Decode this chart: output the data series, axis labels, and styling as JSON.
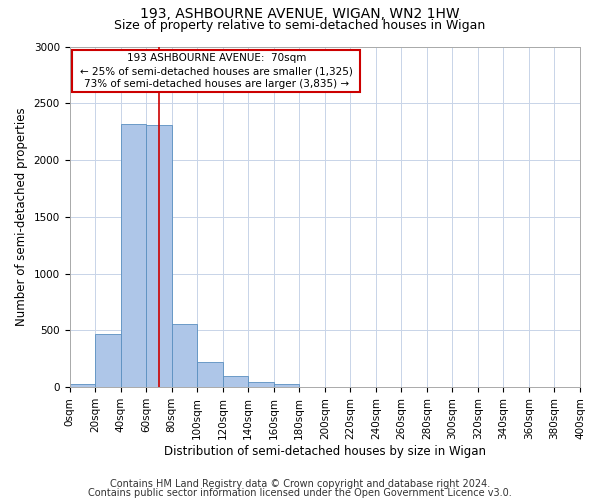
{
  "title1": "193, ASHBOURNE AVENUE, WIGAN, WN2 1HW",
  "title2": "Size of property relative to semi-detached houses in Wigan",
  "xlabel": "Distribution of semi-detached houses by size in Wigan",
  "ylabel": "Number of semi-detached properties",
  "footnote1": "Contains HM Land Registry data © Crown copyright and database right 2024.",
  "footnote2": "Contains public sector information licensed under the Open Government Licence v3.0.",
  "bin_edges": [
    0,
    20,
    40,
    60,
    80,
    100,
    120,
    140,
    160,
    180,
    200,
    220,
    240,
    260,
    280,
    300,
    320,
    340,
    360,
    380,
    400
  ],
  "bin_labels": [
    "0sqm",
    "20sqm",
    "40sqm",
    "60sqm",
    "80sqm",
    "100sqm",
    "120sqm",
    "140sqm",
    "160sqm",
    "180sqm",
    "200sqm",
    "220sqm",
    "240sqm",
    "260sqm",
    "280sqm",
    "300sqm",
    "320sqm",
    "340sqm",
    "360sqm",
    "380sqm",
    "400sqm"
  ],
  "bar_heights": [
    30,
    470,
    2320,
    2310,
    560,
    220,
    100,
    50,
    30,
    0,
    0,
    0,
    0,
    0,
    0,
    0,
    0,
    0,
    0,
    0
  ],
  "bar_color": "#aec6e8",
  "bar_edge_color": "#5a8fc0",
  "property_size": 70,
  "property_label": "193 ASHBOURNE AVENUE:  70sqm",
  "pct_smaller": 25,
  "n_smaller": 1325,
  "pct_larger": 73,
  "n_larger": 3835,
  "red_line_color": "#cc0000",
  "annotation_box_color": "#cc0000",
  "ylim": [
    0,
    3000
  ],
  "yticks": [
    0,
    500,
    1000,
    1500,
    2000,
    2500,
    3000
  ],
  "background_color": "#ffffff",
  "grid_color": "#c8d4e8",
  "title1_fontsize": 10,
  "title2_fontsize": 9,
  "axis_label_fontsize": 8.5,
  "tick_fontsize": 7.5,
  "footnote_fontsize": 7
}
